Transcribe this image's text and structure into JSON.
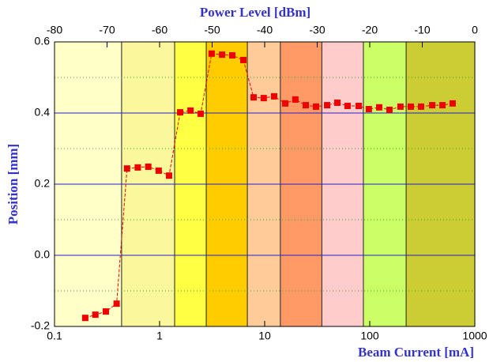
{
  "chart_data": {
    "type": "scatter",
    "x_label": "Beam Current [mA]",
    "x2_label": "Power Level [dBm]",
    "y_label": "Position [mm]",
    "xlog": true,
    "xlim": [
      0.1,
      1000
    ],
    "xticks": [
      0.1,
      1,
      10,
      100,
      1000
    ],
    "x2lim": [
      -80,
      0
    ],
    "x2ticks": [
      -80,
      -70,
      -60,
      -50,
      -40,
      -30,
      -20,
      -10,
      0
    ],
    "ylim": [
      -0.2,
      0.6
    ],
    "yticks": [
      -0.2,
      {
        "value": 0,
        "label": "0.0"
      },
      0.2,
      0.4,
      0.6
    ],
    "yminor": [
      -0.1,
      0.1,
      0.3,
      0.5
    ],
    "bands": {
      "edges": [
        0.1,
        0.435,
        1.39,
        2.78,
        6.84,
        14.1,
        35,
        87,
        222,
        1000
      ],
      "colors": [
        "#ffffc8",
        "#fbf79c",
        "#ffff44",
        "#ffcc00",
        "#ffcc99",
        "#ff9966",
        "#ffcccc",
        "#ccff66",
        "#cccc33"
      ]
    },
    "series": [
      {
        "color": "#ee0000",
        "x": [
          0.196,
          0.245,
          0.308,
          0.39,
          0.49,
          0.62,
          0.78,
          0.98,
          1.23,
          1.57,
          1.97,
          2.46,
          3.13,
          3.93,
          4.92,
          6.27,
          7.85,
          9.8,
          12.3,
          15.7,
          19.6,
          24.6,
          30.8,
          39.3,
          49.2,
          61.5,
          78.5,
          98,
          123,
          154,
          196,
          246,
          308,
          393,
          492,
          615
        ],
        "values": [
          -0.176,
          -0.167,
          -0.158,
          -0.136,
          0.244,
          0.247,
          0.249,
          0.238,
          0.224,
          0.402,
          0.407,
          0.398,
          0.567,
          0.564,
          0.562,
          0.549,
          0.444,
          0.442,
          0.447,
          0.427,
          0.438,
          0.422,
          0.418,
          0.422,
          0.429,
          0.42,
          0.42,
          0.411,
          0.416,
          0.409,
          0.418,
          0.418,
          0.418,
          0.422,
          0.422,
          0.427
        ]
      }
    ]
  }
}
